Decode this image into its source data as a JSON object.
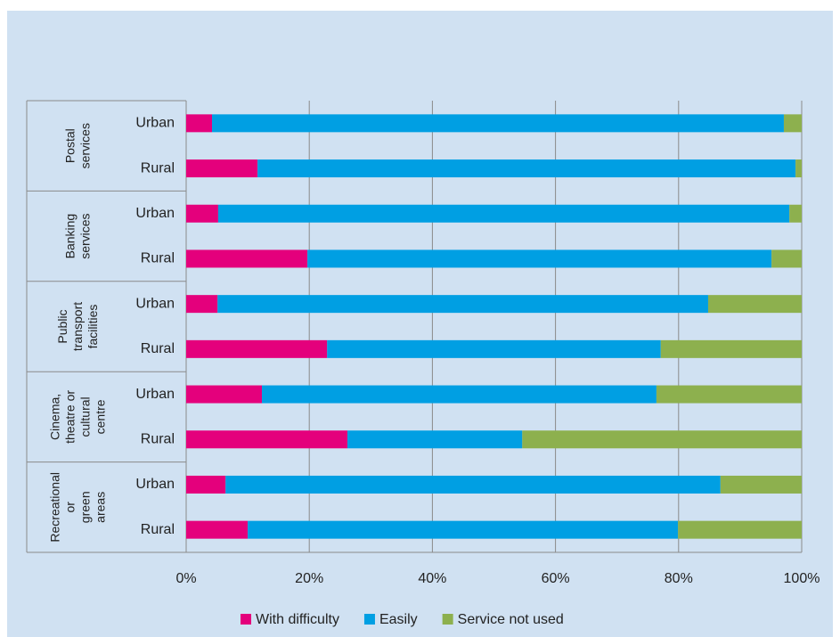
{
  "chart_data": {
    "type": "stacked-bar-horizontal",
    "groups": [
      {
        "name": [
          "Postal",
          "services"
        ],
        "categories": [
          "Urban",
          "Rural"
        ]
      },
      {
        "name": [
          "Banking",
          "services"
        ],
        "categories": [
          "Urban",
          "Rural"
        ]
      },
      {
        "name": [
          "Public",
          "transport",
          "facilities"
        ],
        "categories": [
          "Urban",
          "Rural"
        ]
      },
      {
        "name": [
          "Cinema,",
          "theatre or",
          "cultural",
          "centre"
        ],
        "categories": [
          "Urban",
          "Rural"
        ]
      },
      {
        "name": [
          "Recreational",
          "or",
          "green",
          "areas"
        ],
        "categories": [
          "Urban",
          "Rural"
        ]
      }
    ],
    "series": [
      {
        "name": "With difficulty",
        "color": "#e4007c",
        "values": [
          4.2,
          11.6,
          5.2,
          19.7,
          5.1,
          22.9,
          12.3,
          26.2,
          6.4,
          10.0
        ]
      },
      {
        "name": "Easily",
        "color": "#009fe3",
        "values": [
          92.9,
          87.4,
          92.8,
          75.4,
          79.7,
          54.2,
          64.1,
          28.4,
          80.4,
          69.9
        ]
      },
      {
        "name": "Service not used",
        "color": "#8db04e",
        "values": [
          2.9,
          1.0,
          2.0,
          4.9,
          15.2,
          22.9,
          23.6,
          45.4,
          13.2,
          20.1
        ]
      }
    ],
    "xlim": [
      0,
      100
    ],
    "xticks": [
      {
        "value": 0,
        "label": "0%"
      },
      {
        "value": 20,
        "label": "20%"
      },
      {
        "value": 40,
        "label": "40%"
      },
      {
        "value": 60,
        "label": "60%"
      },
      {
        "value": 80,
        "label": "80%"
      },
      {
        "value": 100,
        "label": "100%"
      }
    ],
    "grid": true
  }
}
